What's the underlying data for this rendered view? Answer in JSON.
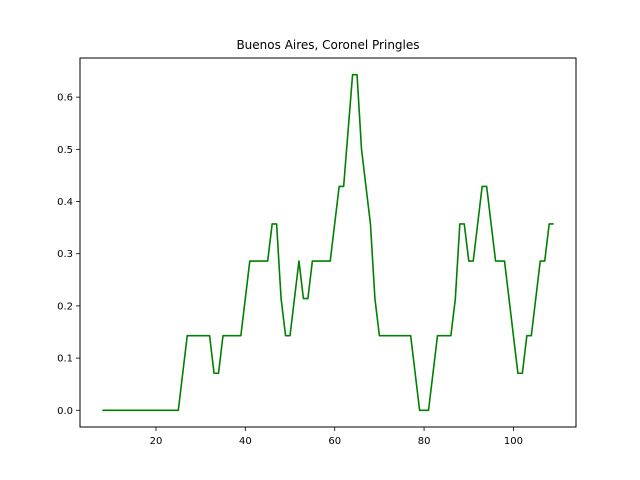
{
  "chart_data": {
    "type": "line",
    "title": "Buenos Aires, Coronel Pringles",
    "xlabel": "",
    "ylabel": "",
    "xlim": [
      3,
      114
    ],
    "ylim": [
      -0.032,
      0.675
    ],
    "xticks": [
      20,
      40,
      60,
      80,
      100
    ],
    "yticks": [
      0.0,
      0.1,
      0.2,
      0.3,
      0.4,
      0.5,
      0.6
    ],
    "grid": false,
    "line_color": "#008000",
    "series": [
      {
        "x": [
          8,
          25,
          27,
          32,
          33,
          34,
          35,
          39,
          41,
          45,
          46,
          47,
          48,
          49,
          50,
          52,
          53,
          54,
          55,
          59,
          61,
          62,
          64,
          65,
          66,
          68,
          69,
          70,
          77,
          79,
          80,
          81,
          83,
          86,
          87,
          88,
          89,
          90,
          91,
          93,
          94,
          96,
          98,
          101,
          102,
          103,
          104,
          106,
          107,
          108,
          109
        ],
        "y": [
          0,
          0,
          0.143,
          0.143,
          0.071,
          0.071,
          0.143,
          0.143,
          0.286,
          0.286,
          0.357,
          0.357,
          0.214,
          0.143,
          0.143,
          0.286,
          0.214,
          0.214,
          0.286,
          0.286,
          0.429,
          0.429,
          0.643,
          0.643,
          0.5,
          0.357,
          0.214,
          0.143,
          0.143,
          0.0,
          0.0,
          0.0,
          0.143,
          0.143,
          0.214,
          0.357,
          0.357,
          0.286,
          0.286,
          0.429,
          0.429,
          0.286,
          0.286,
          0.071,
          0.071,
          0.143,
          0.143,
          0.286,
          0.286,
          0.357,
          0.357
        ]
      }
    ]
  }
}
